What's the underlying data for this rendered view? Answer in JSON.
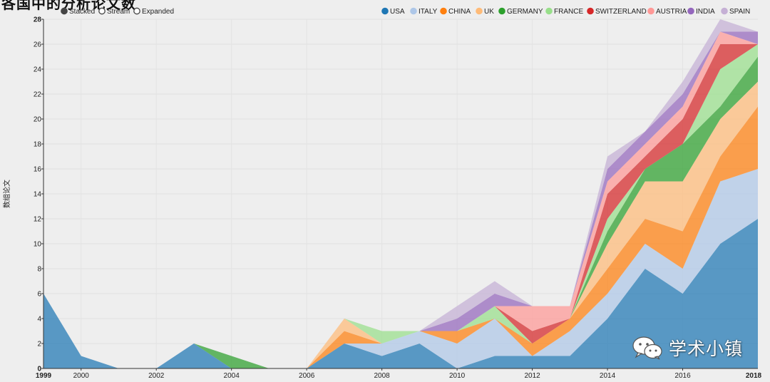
{
  "header": {
    "title": "各国中的分析论文数"
  },
  "controls": {
    "modes": [
      {
        "label": "Stacked",
        "selected": true
      },
      {
        "label": "Stream",
        "selected": false
      },
      {
        "label": "Expanded",
        "selected": false
      }
    ]
  },
  "watermark": {
    "text": "学术小镇",
    "icon": "wechat-icon"
  },
  "chart_data": {
    "type": "area",
    "stacked": true,
    "title": "各国中的分析论文数",
    "xlabel": "",
    "ylabel": "数组论文",
    "x": [
      1999,
      2000,
      2001,
      2002,
      2003,
      2004,
      2005,
      2006,
      2007,
      2008,
      2009,
      2010,
      2011,
      2012,
      2013,
      2014,
      2015,
      2016,
      2017,
      2018
    ],
    "x_ticks": [
      2000,
      2002,
      2004,
      2006,
      2008,
      2010,
      2012,
      2014,
      2016
    ],
    "x_edge_labels": [
      "1999",
      "2018"
    ],
    "ylim": [
      0,
      28
    ],
    "y_ticks": [
      0,
      2,
      4,
      6,
      8,
      10,
      12,
      14,
      16,
      18,
      20,
      22,
      24,
      26,
      28
    ],
    "grid": true,
    "legend_position": "top-right",
    "series": [
      {
        "name": "USA",
        "color": "#1f77b4",
        "values": [
          6,
          1,
          0,
          0,
          2,
          0,
          0,
          0,
          2,
          1,
          2,
          0,
          1,
          1,
          1,
          4,
          8,
          6,
          10,
          12
        ]
      },
      {
        "name": "ITALY",
        "color": "#aec7e8",
        "values": [
          0,
          0,
          0,
          0,
          0,
          0,
          0,
          0,
          0,
          1,
          1,
          2,
          3,
          0,
          2,
          2,
          2,
          2,
          5,
          4
        ]
      },
      {
        "name": "CHINA",
        "color": "#ff7f0e",
        "values": [
          0,
          0,
          0,
          0,
          0,
          0,
          0,
          0,
          1,
          0,
          0,
          1,
          0,
          1,
          1,
          2,
          2,
          3,
          2,
          5
        ]
      },
      {
        "name": "UK",
        "color": "#ffbb78",
        "values": [
          0,
          0,
          0,
          0,
          0,
          0,
          0,
          0,
          1,
          0,
          0,
          0,
          0,
          0,
          0,
          2,
          3,
          4,
          3,
          2
        ]
      },
      {
        "name": "GERMANY",
        "color": "#2ca02c",
        "values": [
          0,
          0,
          0,
          0,
          0,
          1,
          0,
          0,
          0,
          0,
          0,
          0,
          0,
          0,
          0,
          1,
          1,
          3,
          1,
          2
        ]
      },
      {
        "name": "FRANCE",
        "color": "#98df8a",
        "values": [
          0,
          0,
          0,
          0,
          0,
          0,
          0,
          0,
          0,
          1,
          0,
          0,
          1,
          0,
          0,
          1,
          0,
          0,
          3,
          1
        ]
      },
      {
        "name": "SWITZERLAND",
        "color": "#d62728",
        "values": [
          0,
          0,
          0,
          0,
          0,
          0,
          0,
          0,
          0,
          0,
          0,
          0,
          0,
          1,
          0,
          2,
          1,
          2,
          2,
          0
        ]
      },
      {
        "name": "AUSTRIA",
        "color": "#ff9896",
        "values": [
          0,
          0,
          0,
          0,
          0,
          0,
          0,
          0,
          0,
          0,
          0,
          0,
          0,
          2,
          1,
          1,
          1,
          1,
          1,
          0
        ]
      },
      {
        "name": "INDIA",
        "color": "#9467bd",
        "values": [
          0,
          0,
          0,
          0,
          0,
          0,
          0,
          0,
          0,
          0,
          0,
          1,
          1,
          0,
          0,
          1,
          1,
          1,
          0,
          1
        ]
      },
      {
        "name": "SPAIN",
        "color": "#c5b0d5",
        "values": [
          0,
          0,
          0,
          0,
          0,
          0,
          0,
          0,
          0,
          0,
          0,
          1,
          1,
          0,
          0,
          1,
          0,
          1,
          1,
          0
        ]
      }
    ]
  }
}
